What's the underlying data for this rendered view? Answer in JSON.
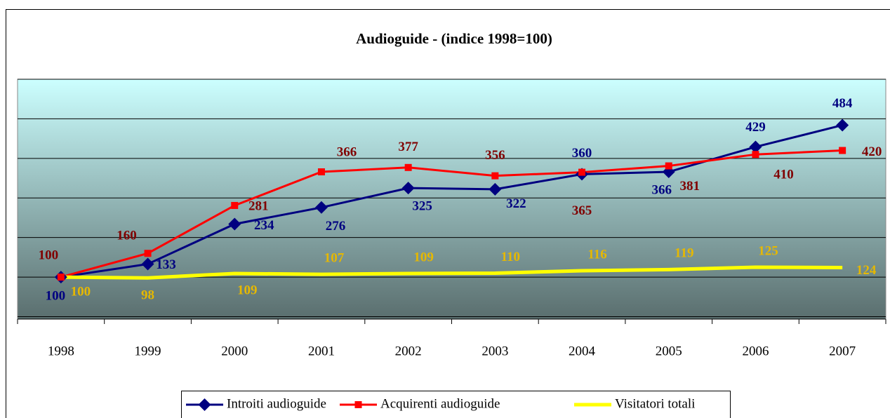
{
  "chart_data": {
    "type": "line",
    "title": "Audioguide - (indice 1998=100)",
    "categories": [
      "1998",
      "1999",
      "2000",
      "2001",
      "2002",
      "2003",
      "2004",
      "2005",
      "2006",
      "2007"
    ],
    "series": [
      {
        "name": "Introiti audioguide",
        "color": "#000080",
        "label_color": "#000080",
        "marker": "diamond",
        "values": [
          100,
          133,
          234,
          276,
          325,
          322,
          360,
          366,
          429,
          484
        ]
      },
      {
        "name": "Acquirenti audioguide",
        "color": "#ff0000",
        "label_color": "#800000",
        "marker": "square",
        "values": [
          100,
          160,
          281,
          366,
          377,
          356,
          365,
          381,
          410,
          420
        ]
      },
      {
        "name": "Visitatori totali",
        "color": "#ffff00",
        "label_color": "#e6b800",
        "marker": "none",
        "values": [
          100,
          98,
          109,
          107,
          109,
          110,
          116,
          119,
          125,
          124
        ]
      }
    ],
    "ylim": [
      0,
      600
    ],
    "yticks": [
      0,
      100,
      200,
      300,
      400,
      500,
      600
    ],
    "grid": true,
    "legend": "bottom"
  }
}
